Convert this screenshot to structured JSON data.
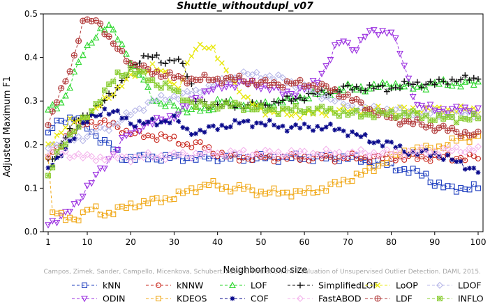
{
  "chart_data": {
    "type": "line",
    "title": "Shuttle_withoutdupl_v07",
    "xlabel": "Neighborhood size",
    "ylabel": "Adjusted Maximum F1",
    "xlim": [
      1,
      100
    ],
    "ylim": [
      0,
      0.5
    ],
    "x_ticks": [
      1,
      10,
      20,
      30,
      40,
      50,
      60,
      70,
      80,
      90,
      100
    ],
    "x_tick_labels": [
      "1",
      "10",
      "20",
      "30",
      "40",
      "50",
      "60",
      "70",
      "80",
      "90",
      "100"
    ],
    "y_ticks": [
      0,
      0.1,
      0.2,
      0.3,
      0.4,
      0.5
    ],
    "y_tick_labels": [
      "0.0",
      "0.1",
      "0.2",
      "0.3",
      "0.4",
      "0.5"
    ],
    "grid": false,
    "legend_position": "bottom",
    "watermark": "Campos, Zimek, Sander, Campello, Micenkova, Schubert, Assent, Houle: On the Evaluation of Unsupervised Outlier Detection. DAMI, 2015.",
    "series": [
      {
        "name": "kNN",
        "color": "#1f3fbf",
        "marker": "square",
        "anchors": [
          [
            1,
            0.22
          ],
          [
            2,
            0.24
          ],
          [
            3,
            0.25
          ],
          [
            5,
            0.26
          ],
          [
            8,
            0.26
          ],
          [
            10,
            0.24
          ],
          [
            12,
            0.22
          ],
          [
            15,
            0.2
          ],
          [
            17,
            0.18
          ],
          [
            18,
            0.17
          ],
          [
            30,
            0.17
          ],
          [
            50,
            0.17
          ],
          [
            70,
            0.17
          ],
          [
            76,
            0.16
          ],
          [
            80,
            0.15
          ],
          [
            84,
            0.14
          ],
          [
            88,
            0.13
          ],
          [
            90,
            0.11
          ],
          [
            93,
            0.1
          ],
          [
            97,
            0.1
          ],
          [
            100,
            0.1
          ]
        ]
      },
      {
        "name": "kNNW",
        "color": "#c8281e",
        "marker": "circle",
        "anchors": [
          [
            1,
            0.17
          ],
          [
            3,
            0.19
          ],
          [
            5,
            0.22
          ],
          [
            8,
            0.24
          ],
          [
            10,
            0.25
          ],
          [
            14,
            0.25
          ],
          [
            17,
            0.24
          ],
          [
            19,
            0.23
          ],
          [
            23,
            0.22
          ],
          [
            27,
            0.22
          ],
          [
            30,
            0.21
          ],
          [
            33,
            0.2
          ],
          [
            36,
            0.2
          ],
          [
            38,
            0.19
          ],
          [
            40,
            0.18
          ],
          [
            43,
            0.17
          ],
          [
            50,
            0.17
          ],
          [
            70,
            0.17
          ],
          [
            85,
            0.17
          ],
          [
            100,
            0.17
          ]
        ]
      },
      {
        "name": "LOF",
        "color": "#2ad62a",
        "marker": "triangle",
        "anchors": [
          [
            1,
            0.28
          ],
          [
            3,
            0.29
          ],
          [
            5,
            0.31
          ],
          [
            7,
            0.36
          ],
          [
            9,
            0.41
          ],
          [
            11,
            0.44
          ],
          [
            13,
            0.46
          ],
          [
            15,
            0.47
          ],
          [
            17,
            0.45
          ],
          [
            19,
            0.41
          ],
          [
            21,
            0.37
          ],
          [
            23,
            0.35
          ],
          [
            25,
            0.31
          ],
          [
            27,
            0.29
          ],
          [
            30,
            0.29
          ],
          [
            32,
            0.28
          ],
          [
            35,
            0.28
          ],
          [
            38,
            0.28
          ],
          [
            40,
            0.3
          ],
          [
            45,
            0.29
          ],
          [
            50,
            0.29
          ],
          [
            55,
            0.3
          ],
          [
            60,
            0.31
          ],
          [
            65,
            0.32
          ],
          [
            70,
            0.33
          ],
          [
            75,
            0.33
          ],
          [
            80,
            0.34
          ],
          [
            85,
            0.33
          ],
          [
            90,
            0.34
          ],
          [
            95,
            0.34
          ],
          [
            100,
            0.34
          ]
        ]
      },
      {
        "name": "SimplifiedLOF",
        "color": "#111111",
        "marker": "plus",
        "anchors": [
          [
            1,
            0.16
          ],
          [
            3,
            0.18
          ],
          [
            5,
            0.22
          ],
          [
            8,
            0.26
          ],
          [
            10,
            0.27
          ],
          [
            13,
            0.29
          ],
          [
            16,
            0.32
          ],
          [
            19,
            0.36
          ],
          [
            22,
            0.39
          ],
          [
            24,
            0.41
          ],
          [
            26,
            0.4
          ],
          [
            28,
            0.38
          ],
          [
            30,
            0.4
          ],
          [
            32,
            0.39
          ],
          [
            35,
            0.3
          ],
          [
            40,
            0.29
          ],
          [
            45,
            0.29
          ],
          [
            50,
            0.29
          ],
          [
            55,
            0.3
          ],
          [
            60,
            0.31
          ],
          [
            65,
            0.32
          ],
          [
            70,
            0.33
          ],
          [
            75,
            0.33
          ],
          [
            80,
            0.33
          ],
          [
            85,
            0.34
          ],
          [
            90,
            0.34
          ],
          [
            95,
            0.35
          ],
          [
            100,
            0.35
          ]
        ]
      },
      {
        "name": "LoOP",
        "color": "#e8e810",
        "marker": "cross",
        "anchors": [
          [
            1,
            0.2
          ],
          [
            3,
            0.22
          ],
          [
            6,
            0.25
          ],
          [
            9,
            0.26
          ],
          [
            12,
            0.28
          ],
          [
            15,
            0.31
          ],
          [
            18,
            0.34
          ],
          [
            21,
            0.36
          ],
          [
            25,
            0.38
          ],
          [
            28,
            0.36
          ],
          [
            31,
            0.33
          ],
          [
            33,
            0.38
          ],
          [
            35,
            0.42
          ],
          [
            37,
            0.43
          ],
          [
            39,
            0.42
          ],
          [
            41,
            0.38
          ],
          [
            44,
            0.34
          ],
          [
            47,
            0.3
          ],
          [
            50,
            0.28
          ],
          [
            55,
            0.27
          ],
          [
            60,
            0.27
          ],
          [
            70,
            0.28
          ],
          [
            80,
            0.28
          ],
          [
            90,
            0.28
          ],
          [
            100,
            0.28
          ]
        ]
      },
      {
        "name": "LDOF",
        "color": "#b8b8e8",
        "marker": "diamond",
        "anchors": [
          [
            1,
            0.2
          ],
          [
            3,
            0.2
          ],
          [
            6,
            0.21
          ],
          [
            10,
            0.22
          ],
          [
            15,
            0.24
          ],
          [
            20,
            0.27
          ],
          [
            25,
            0.3
          ],
          [
            30,
            0.31
          ],
          [
            35,
            0.32
          ],
          [
            40,
            0.34
          ],
          [
            45,
            0.36
          ],
          [
            50,
            0.36
          ],
          [
            55,
            0.35
          ],
          [
            60,
            0.33
          ],
          [
            65,
            0.31
          ],
          [
            70,
            0.29
          ],
          [
            75,
            0.28
          ],
          [
            80,
            0.28
          ],
          [
            85,
            0.27
          ],
          [
            90,
            0.27
          ],
          [
            95,
            0.27
          ],
          [
            100,
            0.27
          ]
        ]
      },
      {
        "name": "ODIN",
        "color": "#9b30e0",
        "marker": "triangle-down",
        "anchors": [
          [
            1,
            0.02
          ],
          [
            4,
            0.03
          ],
          [
            7,
            0.06
          ],
          [
            10,
            0.1
          ],
          [
            13,
            0.14
          ],
          [
            16,
            0.18
          ],
          [
            19,
            0.22
          ],
          [
            22,
            0.24
          ],
          [
            25,
            0.25
          ],
          [
            28,
            0.26
          ],
          [
            31,
            0.27
          ],
          [
            34,
            0.3
          ],
          [
            37,
            0.32
          ],
          [
            40,
            0.33
          ],
          [
            44,
            0.34
          ],
          [
            48,
            0.34
          ],
          [
            52,
            0.33
          ],
          [
            55,
            0.32
          ],
          [
            58,
            0.32
          ],
          [
            61,
            0.33
          ],
          [
            63,
            0.35
          ],
          [
            65,
            0.38
          ],
          [
            67,
            0.42
          ],
          [
            69,
            0.44
          ],
          [
            70,
            0.43
          ],
          [
            72,
            0.42
          ],
          [
            74,
            0.45
          ],
          [
            76,
            0.46
          ],
          [
            78,
            0.46
          ],
          [
            80,
            0.46
          ],
          [
            82,
            0.41
          ],
          [
            84,
            0.35
          ],
          [
            86,
            0.29
          ],
          [
            90,
            0.28
          ],
          [
            95,
            0.28
          ],
          [
            100,
            0.28
          ]
        ]
      },
      {
        "name": "KDEOS",
        "color": "#f0a818",
        "marker": "square",
        "anchors": [
          [
            1,
            0.17
          ],
          [
            2,
            0.05
          ],
          [
            3,
            0.04
          ],
          [
            5,
            0.03
          ],
          [
            7,
            0.03
          ],
          [
            9,
            0.04
          ],
          [
            10,
            0.05
          ],
          [
            12,
            0.05
          ],
          [
            14,
            0.04
          ],
          [
            17,
            0.05
          ],
          [
            20,
            0.06
          ],
          [
            25,
            0.07
          ],
          [
            30,
            0.08
          ],
          [
            35,
            0.1
          ],
          [
            38,
            0.11
          ],
          [
            42,
            0.1
          ],
          [
            46,
            0.1
          ],
          [
            50,
            0.09
          ],
          [
            55,
            0.09
          ],
          [
            60,
            0.09
          ],
          [
            65,
            0.1
          ],
          [
            70,
            0.12
          ],
          [
            75,
            0.14
          ],
          [
            80,
            0.17
          ],
          [
            85,
            0.19
          ],
          [
            90,
            0.19
          ],
          [
            95,
            0.21
          ],
          [
            100,
            0.22
          ]
        ]
      },
      {
        "name": "COF",
        "color": "#0a0a8c",
        "marker": "star",
        "anchors": [
          [
            1,
            0.15
          ],
          [
            3,
            0.16
          ],
          [
            5,
            0.19
          ],
          [
            8,
            0.24
          ],
          [
            11,
            0.26
          ],
          [
            14,
            0.28
          ],
          [
            17,
            0.27
          ],
          [
            20,
            0.25
          ],
          [
            23,
            0.25
          ],
          [
            26,
            0.25
          ],
          [
            30,
            0.26
          ],
          [
            33,
            0.23
          ],
          [
            36,
            0.23
          ],
          [
            40,
            0.24
          ],
          [
            45,
            0.25
          ],
          [
            50,
            0.25
          ],
          [
            55,
            0.24
          ],
          [
            60,
            0.24
          ],
          [
            65,
            0.24
          ],
          [
            70,
            0.23
          ],
          [
            75,
            0.21
          ],
          [
            80,
            0.2
          ],
          [
            85,
            0.18
          ],
          [
            90,
            0.18
          ],
          [
            95,
            0.16
          ],
          [
            100,
            0.14
          ]
        ]
      },
      {
        "name": "FastABOD",
        "color": "#f4b4ec",
        "marker": "diamond",
        "anchors": [
          [
            1,
            0.18
          ],
          [
            5,
            0.18
          ],
          [
            10,
            0.17
          ],
          [
            20,
            0.17
          ],
          [
            40,
            0.18
          ],
          [
            60,
            0.18
          ],
          [
            80,
            0.18
          ],
          [
            100,
            0.19
          ]
        ]
      },
      {
        "name": "LDF",
        "color": "#b03838",
        "marker": "circle-plus",
        "anchors": [
          [
            1,
            0.24
          ],
          [
            3,
            0.3
          ],
          [
            5,
            0.35
          ],
          [
            7,
            0.4
          ],
          [
            9,
            0.48
          ],
          [
            10,
            0.48
          ],
          [
            11,
            0.49
          ],
          [
            13,
            0.48
          ],
          [
            15,
            0.44
          ],
          [
            17,
            0.42
          ],
          [
            19,
            0.4
          ],
          [
            21,
            0.38
          ],
          [
            24,
            0.37
          ],
          [
            28,
            0.36
          ],
          [
            32,
            0.35
          ],
          [
            36,
            0.35
          ],
          [
            40,
            0.35
          ],
          [
            45,
            0.35
          ],
          [
            50,
            0.34
          ],
          [
            55,
            0.34
          ],
          [
            60,
            0.34
          ],
          [
            65,
            0.33
          ],
          [
            70,
            0.31
          ],
          [
            75,
            0.28
          ],
          [
            80,
            0.26
          ],
          [
            85,
            0.25
          ],
          [
            90,
            0.24
          ],
          [
            95,
            0.23
          ],
          [
            100,
            0.22
          ]
        ]
      },
      {
        "name": "INFLO",
        "color": "#88cc30",
        "marker": "star-box",
        "anchors": [
          [
            1,
            0.12
          ],
          [
            3,
            0.18
          ],
          [
            5,
            0.21
          ],
          [
            8,
            0.24
          ],
          [
            11,
            0.28
          ],
          [
            14,
            0.32
          ],
          [
            17,
            0.36
          ],
          [
            20,
            0.37
          ],
          [
            23,
            0.36
          ],
          [
            26,
            0.34
          ],
          [
            29,
            0.33
          ],
          [
            32,
            0.31
          ],
          [
            35,
            0.29
          ],
          [
            40,
            0.29
          ],
          [
            45,
            0.29
          ],
          [
            50,
            0.28
          ],
          [
            55,
            0.28
          ],
          [
            60,
            0.28
          ],
          [
            65,
            0.28
          ],
          [
            70,
            0.27
          ],
          [
            75,
            0.27
          ],
          [
            80,
            0.27
          ],
          [
            85,
            0.27
          ],
          [
            90,
            0.26
          ],
          [
            95,
            0.26
          ],
          [
            100,
            0.26
          ]
        ]
      }
    ]
  }
}
